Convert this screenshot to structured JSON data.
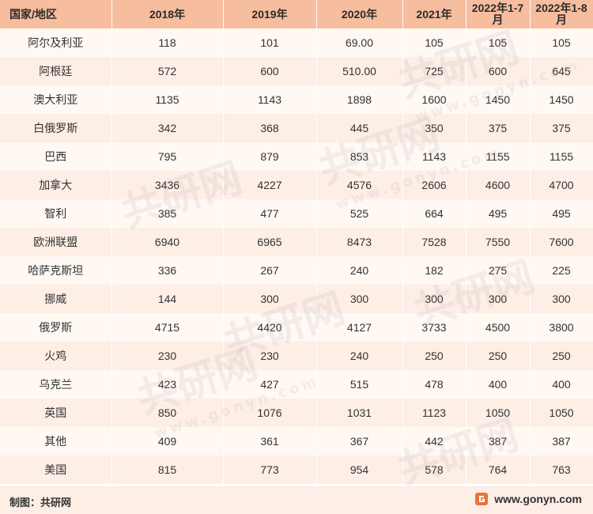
{
  "table": {
    "headers": [
      "国家/地区",
      "2018年",
      "2019年",
      "2020年",
      "2021年",
      "2022年1-7月",
      "2022年1-8月"
    ],
    "rows": [
      [
        "阿尔及利亚",
        "118",
        "101",
        "69.00",
        "105",
        "105",
        "105"
      ],
      [
        "阿根廷",
        "572",
        "600",
        "510.00",
        "725",
        "600",
        "645"
      ],
      [
        "澳大利亚",
        "1135",
        "1143",
        "1898",
        "1600",
        "1450",
        "1450"
      ],
      [
        "白俄罗斯",
        "342",
        "368",
        "445",
        "350",
        "375",
        "375"
      ],
      [
        "巴西",
        "795",
        "879",
        "853",
        "1143",
        "1155",
        "1155"
      ],
      [
        "加拿大",
        "3436",
        "4227",
        "4576",
        "2606",
        "4600",
        "4700"
      ],
      [
        "智利",
        "385",
        "477",
        "525",
        "664",
        "495",
        "495"
      ],
      [
        "欧洲联盟",
        "6940",
        "6965",
        "8473",
        "7528",
        "7550",
        "7600"
      ],
      [
        "哈萨克斯坦",
        "336",
        "267",
        "240",
        "182",
        "275",
        "225"
      ],
      [
        "挪威",
        "144",
        "300",
        "300",
        "300",
        "300",
        "300"
      ],
      [
        "俄罗斯",
        "4715",
        "4420",
        "4127",
        "3733",
        "4500",
        "3800"
      ],
      [
        "火鸡",
        "230",
        "230",
        "240",
        "250",
        "250",
        "250"
      ],
      [
        "乌克兰",
        "423",
        "427",
        "515",
        "478",
        "400",
        "400"
      ],
      [
        "英国",
        "850",
        "1076",
        "1031",
        "1123",
        "1050",
        "1050"
      ],
      [
        "其他",
        "409",
        "361",
        "367",
        "442",
        "387",
        "387"
      ],
      [
        "美国",
        "815",
        "773",
        "954",
        "578",
        "764",
        "763"
      ]
    ]
  },
  "footer": {
    "credit": "制图：共研网",
    "brand_url": "www.gonyn.com",
    "brand_icon": "gonyn-logo-icon",
    "accent_color": "#e8743b"
  },
  "watermark": {
    "text": "共研网",
    "url_text": "www.gonyn.com"
  }
}
